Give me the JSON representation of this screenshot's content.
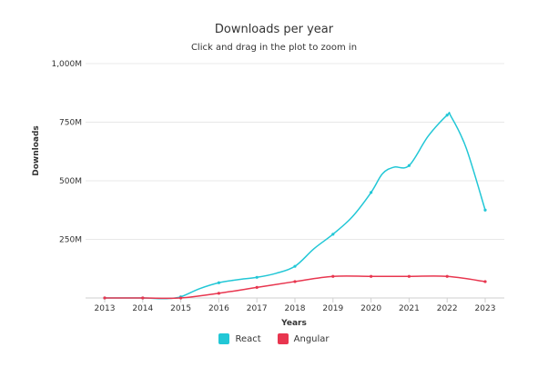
{
  "chart_data": {
    "type": "line",
    "title": "Downloads per year",
    "subtitle": "Click and drag in the plot to zoom in",
    "xlabel": "Years",
    "ylabel": "Downloads",
    "categories": [
      "2013",
      "2014",
      "2015",
      "2016",
      "2017",
      "2018",
      "2019",
      "2020",
      "2021",
      "2022",
      "2023"
    ],
    "ylim": [
      0,
      1000
    ],
    "yticks": [
      0,
      250,
      500,
      750,
      1000
    ],
    "ytick_labels": [
      "",
      "250M",
      "500M",
      "750M",
      "1,000M"
    ],
    "grid": true,
    "legend_position": "bottom-center",
    "series": [
      {
        "name": "React",
        "color": "#22c7d6",
        "x": [
          2013.0,
          2013.5,
          2014.0,
          2014.5,
          2014.7,
          2015.0,
          2015.5,
          2016.0,
          2016.5,
          2017.0,
          2017.5,
          2018.0,
          2018.5,
          2019.0,
          2019.5,
          2020.0,
          2020.3,
          2020.6,
          2021.0,
          2021.5,
          2022.0,
          2022.1,
          2022.5,
          2023.0
        ],
        "values": [
          0,
          0,
          0,
          -3,
          -2,
          5,
          40,
          65,
          78,
          88,
          105,
          135,
          210,
          272,
          345,
          450,
          530,
          558,
          565,
          690,
          780,
          775,
          640,
          375
        ]
      },
      {
        "name": "Angular",
        "color": "#e8364f",
        "x": [
          2013,
          2014,
          2015,
          2016,
          2017,
          2018,
          2019,
          2020,
          2021,
          2022,
          2023
        ],
        "values": [
          0,
          0,
          0,
          20,
          45,
          70,
          92,
          92,
          92,
          92,
          70
        ]
      }
    ]
  }
}
